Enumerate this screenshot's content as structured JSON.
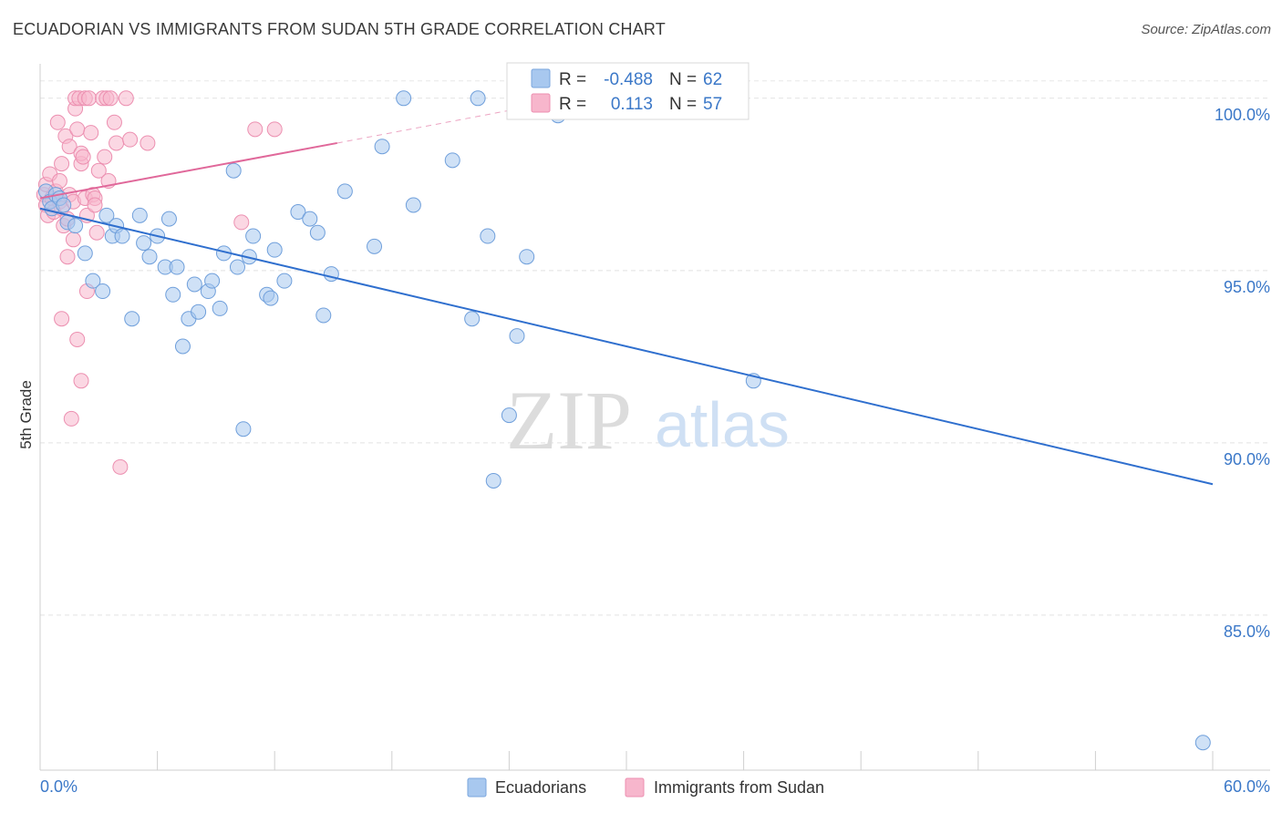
{
  "title": "ECUADORIAN VS IMMIGRANTS FROM SUDAN 5TH GRADE CORRELATION CHART",
  "source": "Source: ZipAtlas.com",
  "watermark": {
    "zip": "ZIP",
    "atlas": "atlas"
  },
  "chart_data": {
    "type": "scatter",
    "xlabel": "",
    "ylabel": "5th Grade",
    "xlim": [
      0,
      60
    ],
    "ylim": [
      80.5,
      101.0
    ],
    "x_tick_labels": {
      "min": "0.0%",
      "max": "60.0%"
    },
    "y_ticks": [
      {
        "value": 100,
        "label": "100.0%"
      },
      {
        "value": 95,
        "label": "95.0%"
      },
      {
        "value": 90,
        "label": "90.0%"
      },
      {
        "value": 85,
        "label": "85.0%"
      }
    ],
    "legend": {
      "r_label": "R =",
      "n_label": "N =",
      "entries": [
        {
          "name": "Ecuadorians",
          "r": "-0.488",
          "n": "62",
          "color": "#a8c8ef",
          "stroke": "#7aa6de"
        },
        {
          "name": "Immigrants from Sudan",
          "r": "0.113",
          "n": "57",
          "color": "#f7b6cc",
          "stroke": "#ec8fb0"
        }
      ]
    },
    "series": [
      {
        "name": "Ecuadorians",
        "color": "#a8c8ef",
        "stroke": "#6f9fdb",
        "line_color": "#2f6fce",
        "trend": {
          "x1": 0.0,
          "y1": 96.8,
          "x2": 60.0,
          "y2": 88.8
        },
        "points": [
          [
            0.3,
            97.3
          ],
          [
            0.5,
            97.0
          ],
          [
            0.6,
            96.8
          ],
          [
            0.8,
            97.2
          ],
          [
            1.0,
            97.1
          ],
          [
            1.2,
            96.9
          ],
          [
            1.4,
            96.4
          ],
          [
            1.8,
            96.3
          ],
          [
            2.3,
            95.5
          ],
          [
            2.7,
            94.7
          ],
          [
            3.2,
            94.4
          ],
          [
            3.4,
            96.6
          ],
          [
            3.7,
            96.0
          ],
          [
            3.9,
            96.3
          ],
          [
            4.2,
            96.0
          ],
          [
            4.7,
            93.6
          ],
          [
            5.1,
            96.6
          ],
          [
            5.3,
            95.8
          ],
          [
            5.6,
            95.4
          ],
          [
            6.0,
            96.0
          ],
          [
            6.4,
            95.1
          ],
          [
            6.6,
            96.5
          ],
          [
            6.8,
            94.3
          ],
          [
            7.0,
            95.1
          ],
          [
            7.3,
            92.8
          ],
          [
            7.6,
            93.6
          ],
          [
            7.9,
            94.6
          ],
          [
            8.1,
            93.8
          ],
          [
            8.6,
            94.4
          ],
          [
            8.8,
            94.7
          ],
          [
            9.2,
            93.9
          ],
          [
            9.4,
            95.5
          ],
          [
            9.9,
            97.9
          ],
          [
            10.1,
            95.1
          ],
          [
            10.4,
            90.4
          ],
          [
            10.7,
            95.4
          ],
          [
            10.9,
            96.0
          ],
          [
            11.6,
            94.3
          ],
          [
            11.8,
            94.2
          ],
          [
            12.0,
            95.6
          ],
          [
            12.5,
            94.7
          ],
          [
            13.2,
            96.7
          ],
          [
            13.8,
            96.5
          ],
          [
            14.2,
            96.1
          ],
          [
            14.5,
            93.7
          ],
          [
            14.9,
            94.9
          ],
          [
            15.6,
            97.3
          ],
          [
            17.1,
            95.7
          ],
          [
            17.5,
            98.6
          ],
          [
            18.6,
            100.0
          ],
          [
            19.1,
            96.9
          ],
          [
            21.1,
            98.2
          ],
          [
            22.1,
            93.6
          ],
          [
            22.4,
            100.0
          ],
          [
            22.9,
            96.0
          ],
          [
            23.2,
            88.9
          ],
          [
            24.0,
            90.8
          ],
          [
            24.4,
            93.1
          ],
          [
            24.9,
            95.4
          ],
          [
            26.5,
            99.5
          ],
          [
            36.5,
            91.8
          ],
          [
            59.5,
            81.3
          ]
        ]
      },
      {
        "name": "Immigrants from Sudan",
        "color": "#f7b6cc",
        "stroke": "#ec8fb0",
        "line_color": "#e0689a",
        "trend": {
          "x1": 0.0,
          "y1": 97.1,
          "x2": 15.2,
          "y2": 98.7
        },
        "trend_dashed": {
          "x1": 15.2,
          "y1": 98.7,
          "x2": 24.5,
          "y2": 99.7
        },
        "points": [
          [
            0.2,
            97.2
          ],
          [
            0.3,
            96.9
          ],
          [
            0.3,
            97.5
          ],
          [
            0.4,
            96.6
          ],
          [
            0.5,
            97.8
          ],
          [
            0.6,
            97.1
          ],
          [
            0.7,
            96.7
          ],
          [
            0.8,
            97.3
          ],
          [
            0.9,
            99.3
          ],
          [
            1.0,
            97.6
          ],
          [
            1.0,
            97.0
          ],
          [
            1.1,
            96.8
          ],
          [
            1.1,
            93.6
          ],
          [
            1.1,
            98.1
          ],
          [
            1.2,
            96.3
          ],
          [
            1.3,
            98.9
          ],
          [
            1.4,
            95.4
          ],
          [
            1.4,
            96.5
          ],
          [
            1.5,
            98.6
          ],
          [
            1.5,
            97.2
          ],
          [
            1.6,
            90.7
          ],
          [
            1.7,
            95.9
          ],
          [
            1.7,
            97.0
          ],
          [
            1.8,
            99.7
          ],
          [
            1.8,
            100.0
          ],
          [
            1.9,
            93.0
          ],
          [
            1.9,
            99.1
          ],
          [
            2.0,
            100.0
          ],
          [
            2.1,
            91.8
          ],
          [
            2.1,
            98.1
          ],
          [
            2.1,
            98.4
          ],
          [
            2.2,
            98.3
          ],
          [
            2.3,
            100.0
          ],
          [
            2.3,
            97.1
          ],
          [
            2.4,
            94.4
          ],
          [
            2.4,
            96.6
          ],
          [
            2.5,
            100.0
          ],
          [
            2.6,
            99.0
          ],
          [
            2.7,
            97.2
          ],
          [
            2.8,
            97.1
          ],
          [
            2.8,
            96.9
          ],
          [
            2.9,
            96.1
          ],
          [
            3.0,
            97.9
          ],
          [
            3.2,
            100.0
          ],
          [
            3.3,
            98.3
          ],
          [
            3.4,
            100.0
          ],
          [
            3.5,
            97.6
          ],
          [
            3.6,
            100.0
          ],
          [
            3.8,
            99.3
          ],
          [
            3.9,
            98.7
          ],
          [
            4.1,
            89.3
          ],
          [
            4.4,
            100.0
          ],
          [
            4.6,
            98.8
          ],
          [
            5.5,
            98.7
          ],
          [
            10.3,
            96.4
          ],
          [
            11.0,
            99.1
          ],
          [
            12.0,
            99.1
          ]
        ]
      }
    ]
  }
}
